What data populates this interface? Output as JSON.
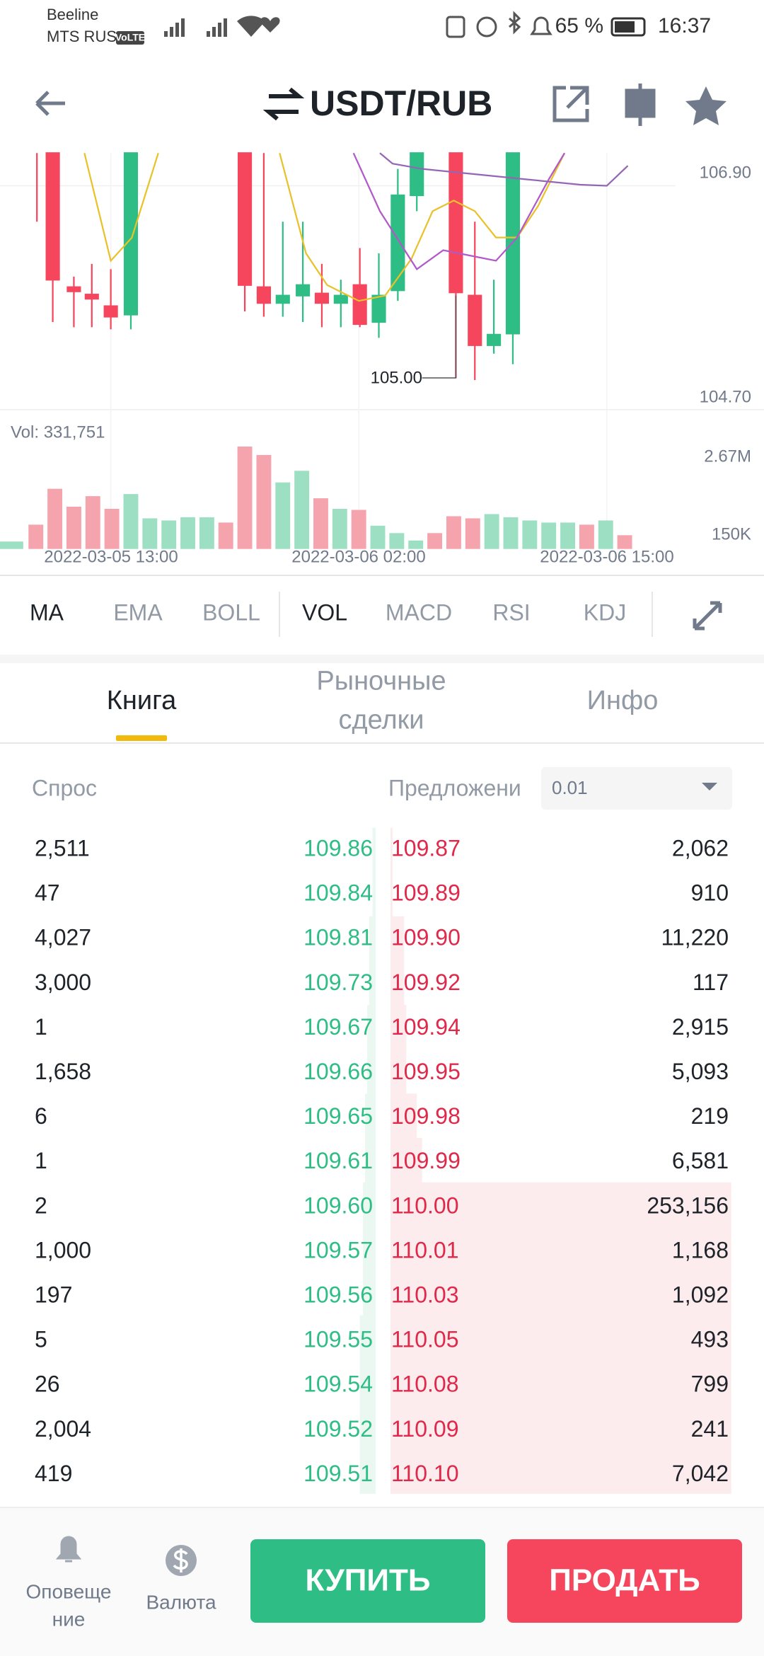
{
  "status_bar": {
    "carrier_1": "Beeline",
    "carrier_2": "MTS RUS",
    "volte": "VoLTE",
    "battery": "65 %",
    "time": "16:37"
  },
  "header": {
    "title": "USDT/RUB"
  },
  "chart": {
    "price_labels": [
      "106.90",
      "104.70"
    ],
    "low_label": "105.00",
    "volume_label": "Vol: 331,751",
    "volume_scale": [
      "2.67M",
      "150K"
    ],
    "time_labels": [
      "2022-03-05 13:00",
      "2022-03-06 02:00",
      "2022-03-06 15:00"
    ]
  },
  "indicators": [
    "MA",
    "EMA",
    "BOLL",
    "VOL",
    "MACD",
    "RSI",
    "KDJ"
  ],
  "tabs": [
    {
      "lines": [
        "Книга"
      ]
    },
    {
      "lines": [
        "Рыночные",
        "сделки"
      ]
    },
    {
      "lines": [
        "Инфо"
      ]
    }
  ],
  "order_book": {
    "bid_header": "Спрос",
    "ask_header": "Предложени",
    "precision": "0.01",
    "rows": [
      [
        "2,511",
        "109.86",
        "109.87",
        "2,062"
      ],
      [
        "47",
        "109.84",
        "109.89",
        "910"
      ],
      [
        "4,027",
        "109.81",
        "109.90",
        "11,220"
      ],
      [
        "3,000",
        "109.73",
        "109.92",
        "117"
      ],
      [
        "1",
        "109.67",
        "109.94",
        "2,915"
      ],
      [
        "1,658",
        "109.66",
        "109.95",
        "5,093"
      ],
      [
        "6",
        "109.65",
        "109.98",
        "219"
      ],
      [
        "1",
        "109.61",
        "109.99",
        "6,581"
      ],
      [
        "2",
        "109.60",
        "110.00",
        "253,156"
      ],
      [
        "1,000",
        "109.57",
        "110.01",
        "1,168"
      ],
      [
        "197",
        "109.56",
        "110.03",
        "1,092"
      ],
      [
        "5",
        "109.55",
        "110.05",
        "493"
      ],
      [
        "26",
        "109.54",
        "110.08",
        "799"
      ],
      [
        "2,004",
        "109.52",
        "110.09",
        "241"
      ],
      [
        "419",
        "109.51",
        "110.10",
        "7,042"
      ]
    ]
  },
  "bottom_bar": {
    "alerts": [
      "Оповеще",
      "ние"
    ],
    "currency": "Валюта",
    "buy": "КУПИТЬ",
    "sell": "ПРОДАТЬ"
  }
}
